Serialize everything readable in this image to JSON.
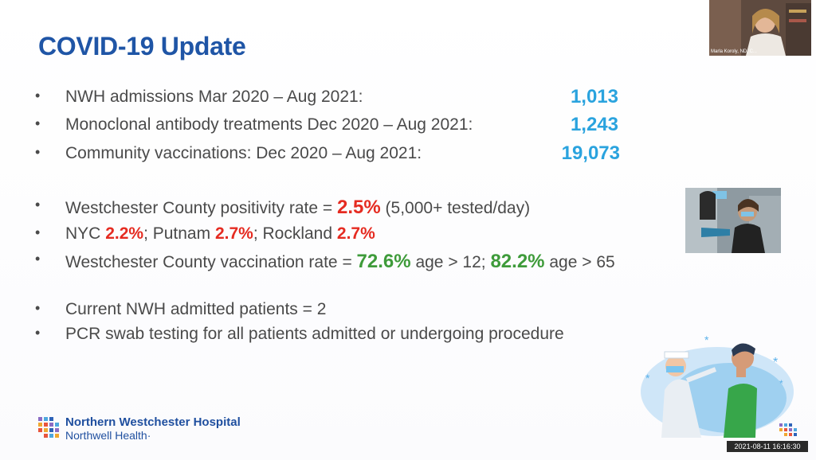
{
  "slide": {
    "title": "COVID-19 Update",
    "stats": [
      {
        "label": "NWH admissions Mar 2020 – Aug 2021:",
        "value": "1,013"
      },
      {
        "label": "Monoclonal antibody treatments Dec 2020 – Aug 2021:",
        "value": "1,243"
      },
      {
        "label": "Community vaccinations: Dec 2020 – Aug 2021:",
        "value": "19,073"
      }
    ],
    "positivity": {
      "prefix": "Westchester County positivity rate = ",
      "rate": "2.5%",
      "suffix": " (5,000+ tested/day)"
    },
    "counties": {
      "nyc_label": "NYC ",
      "nyc_rate": "2.2%",
      "putnam_label": "; Putnam ",
      "putnam_rate": "2.7%",
      "rockland_label": "; Rockland ",
      "rockland_rate": "2.7%"
    },
    "vaccination": {
      "prefix": "Westchester County vaccination rate = ",
      "rate12": "72.6%",
      "mid": " age > 12; ",
      "rate65": "82.2%",
      "suffix": " age > 65"
    },
    "current_patients": "Current NWH admitted patients = 2",
    "pcr_testing": "PCR swab testing for all patients admitted or undergoing procedure",
    "bullet_char": "•"
  },
  "logo": {
    "name": "Northern Westchester Hospital",
    "subtitle": "Northwell Health·"
  },
  "webcam": {
    "label": "Marla Koroly, ND, C..."
  },
  "overlay": {
    "timestamp": "2021-08-11 16:16:30"
  },
  "colors": {
    "title": "#1f55a6",
    "stat_blue": "#2aa3de",
    "red": "#e52b21",
    "green": "#3e9b3a"
  }
}
